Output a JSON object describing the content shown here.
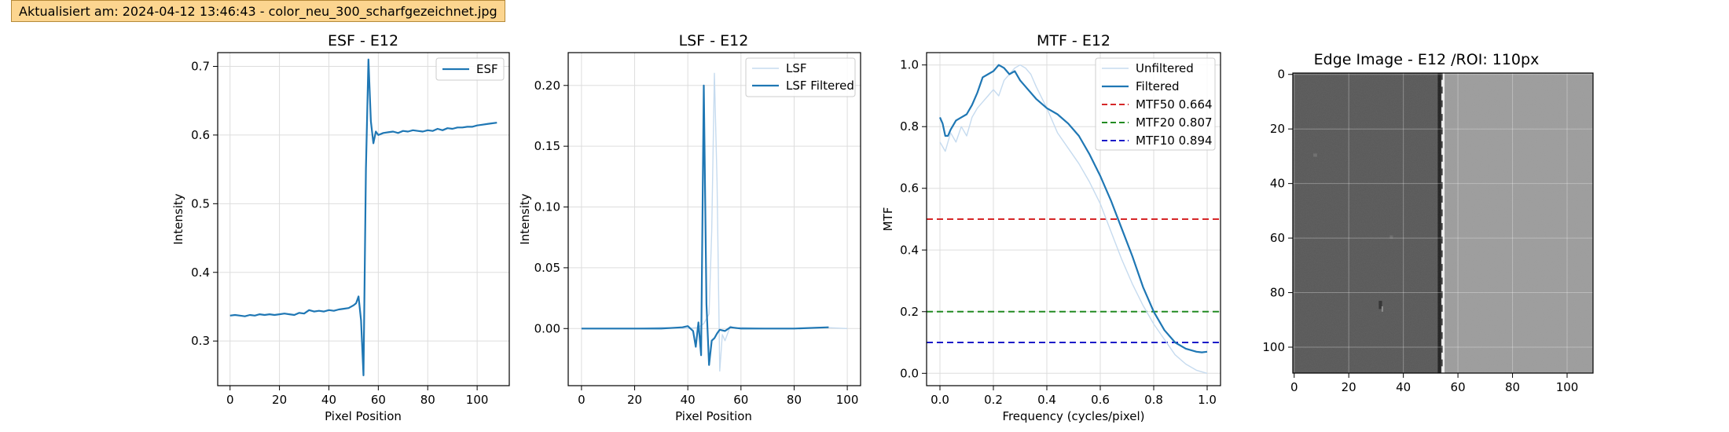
{
  "banner": {
    "text": "Aktualisiert am: 2024-04-12 13:46:43 - color_neu_300_scharfgezeichnet.jpg"
  },
  "colors": {
    "blue": "#1f77b4",
    "light_blue": "#c6dbef",
    "red": "#d62728",
    "green": "#228b22",
    "navy": "#1a1ac8"
  },
  "chart_data": [
    {
      "type": "line",
      "title": "ESF - E12",
      "xlabel": "Pixel Position",
      "ylabel": "Intensity",
      "xlim": [
        -5,
        113
      ],
      "ylim": [
        0.235,
        0.72
      ],
      "xticks": [
        "0",
        "20",
        "40",
        "60",
        "80",
        "100"
      ],
      "yticks": [
        "0.3",
        "0.4",
        "0.5",
        "0.6",
        "0.7"
      ],
      "grid": true,
      "legend": "top-right",
      "series": [
        {
          "name": "ESF",
          "x": [
            0,
            2,
            4,
            6,
            8,
            10,
            12,
            14,
            16,
            18,
            20,
            22,
            24,
            26,
            28,
            30,
            32,
            34,
            36,
            38,
            40,
            42,
            44,
            46,
            48,
            50,
            51,
            52,
            53,
            54,
            55,
            56,
            57,
            58,
            59,
            60,
            62,
            64,
            66,
            68,
            70,
            72,
            74,
            76,
            78,
            80,
            82,
            84,
            86,
            88,
            90,
            92,
            94,
            96,
            98,
            100,
            102,
            104,
            106,
            108
          ],
          "y": [
            0.337,
            0.338,
            0.337,
            0.336,
            0.338,
            0.337,
            0.339,
            0.338,
            0.339,
            0.338,
            0.339,
            0.34,
            0.339,
            0.338,
            0.341,
            0.34,
            0.345,
            0.343,
            0.344,
            0.343,
            0.345,
            0.344,
            0.346,
            0.347,
            0.348,
            0.352,
            0.355,
            0.365,
            0.33,
            0.25,
            0.55,
            0.71,
            0.62,
            0.588,
            0.605,
            0.6,
            0.603,
            0.604,
            0.605,
            0.603,
            0.606,
            0.605,
            0.607,
            0.606,
            0.605,
            0.607,
            0.606,
            0.609,
            0.607,
            0.61,
            0.609,
            0.611,
            0.611,
            0.612,
            0.612,
            0.614,
            0.615,
            0.616,
            0.617,
            0.618
          ]
        }
      ]
    },
    {
      "type": "line",
      "title": "LSF - E12",
      "xlabel": "Pixel Position",
      "ylabel": "Intensity",
      "xlim": [
        -5,
        105
      ],
      "ylim": [
        -0.047,
        0.227
      ],
      "xticks": [
        "0",
        "20",
        "40",
        "60",
        "80",
        "100"
      ],
      "yticks": [
        "0.00",
        "0.05",
        "0.10",
        "0.15",
        "0.20"
      ],
      "grid": true,
      "legend": "top-right",
      "series": [
        {
          "name": "LSF",
          "x": [
            0,
            10,
            20,
            30,
            40,
            44,
            46,
            48,
            49,
            50,
            51,
            52,
            53,
            54,
            56,
            58,
            60,
            70,
            80,
            90,
            100
          ],
          "y": [
            0.0,
            0.0,
            0.0,
            0.001,
            0.0,
            0.001,
            0.004,
            0.012,
            0.08,
            0.21,
            0.12,
            -0.035,
            -0.005,
            -0.01,
            0.002,
            0.0,
            0.001,
            0.0,
            0.0,
            0.001,
            0.0
          ]
        },
        {
          "name": "LSF Filtered",
          "x": [
            0,
            10,
            20,
            30,
            38,
            40,
            42,
            43,
            44,
            45,
            46,
            47,
            48,
            49,
            50,
            51,
            52,
            54,
            56,
            60,
            70,
            80,
            93
          ],
          "y": [
            0.0,
            0.0,
            0.0,
            0.0,
            0.001,
            0.002,
            -0.002,
            -0.015,
            0.005,
            -0.022,
            0.2,
            0.02,
            -0.03,
            -0.01,
            -0.008,
            -0.004,
            -0.001,
            -0.002,
            0.001,
            0.0,
            0.0,
            0.0,
            0.001
          ]
        }
      ]
    },
    {
      "type": "line",
      "title": "MTF - E12",
      "xlabel": "Frequency (cycles/pixel)",
      "ylabel": "MTF",
      "xlim": [
        -0.05,
        1.05
      ],
      "ylim": [
        -0.04,
        1.04
      ],
      "xticks": [
        "0.0",
        "0.2",
        "0.4",
        "0.6",
        "0.8",
        "1.0"
      ],
      "yticks": [
        "0.0",
        "0.2",
        "0.4",
        "0.6",
        "0.8",
        "1.0"
      ],
      "grid": true,
      "legend": "top-right",
      "series": [
        {
          "name": "Unfiltered",
          "x": [
            0.0,
            0.02,
            0.04,
            0.06,
            0.08,
            0.1,
            0.12,
            0.14,
            0.16,
            0.18,
            0.2,
            0.22,
            0.24,
            0.26,
            0.28,
            0.3,
            0.32,
            0.34,
            0.36,
            0.4,
            0.44,
            0.48,
            0.52,
            0.56,
            0.6,
            0.64,
            0.68,
            0.72,
            0.76,
            0.8,
            0.84,
            0.88,
            0.92,
            0.96,
            1.0
          ],
          "y": [
            0.75,
            0.72,
            0.78,
            0.75,
            0.8,
            0.77,
            0.83,
            0.86,
            0.88,
            0.9,
            0.92,
            0.9,
            0.95,
            0.97,
            0.99,
            1.0,
            0.99,
            0.97,
            0.93,
            0.86,
            0.78,
            0.73,
            0.68,
            0.62,
            0.55,
            0.46,
            0.37,
            0.29,
            0.22,
            0.16,
            0.11,
            0.06,
            0.03,
            0.01,
            0.0
          ]
        },
        {
          "name": "Filtered",
          "x": [
            0.0,
            0.01,
            0.02,
            0.03,
            0.04,
            0.06,
            0.08,
            0.1,
            0.12,
            0.14,
            0.16,
            0.18,
            0.2,
            0.22,
            0.24,
            0.26,
            0.28,
            0.3,
            0.32,
            0.36,
            0.4,
            0.44,
            0.48,
            0.52,
            0.56,
            0.6,
            0.64,
            0.68,
            0.72,
            0.76,
            0.8,
            0.84,
            0.88,
            0.92,
            0.96,
            0.98,
            1.0
          ],
          "y": [
            0.83,
            0.81,
            0.77,
            0.77,
            0.79,
            0.82,
            0.83,
            0.84,
            0.87,
            0.91,
            0.96,
            0.97,
            0.98,
            1.0,
            0.99,
            0.97,
            0.98,
            0.95,
            0.93,
            0.89,
            0.86,
            0.84,
            0.81,
            0.77,
            0.71,
            0.64,
            0.56,
            0.47,
            0.38,
            0.28,
            0.2,
            0.14,
            0.1,
            0.08,
            0.07,
            0.068,
            0.07
          ]
        },
        {
          "name": "MTF50 0.664",
          "kind": "hline",
          "y": 0.5,
          "style": "dashed",
          "color": "#d62728"
        },
        {
          "name": "MTF20 0.807",
          "kind": "hline",
          "y": 0.2,
          "style": "dashed",
          "color": "#228b22"
        },
        {
          "name": "MTF10 0.894",
          "kind": "hline",
          "y": 0.1,
          "style": "dashed",
          "color": "#1a1ac8"
        }
      ]
    },
    {
      "type": "heatmap",
      "title": "Edge Image - E12 /ROI: 110px",
      "xlim": [
        -0.5,
        109.5
      ],
      "ylim": [
        109.5,
        -0.5
      ],
      "xticks": [
        "0",
        "20",
        "40",
        "60",
        "80",
        "100"
      ],
      "yticks": [
        "0",
        "20",
        "40",
        "60",
        "80",
        "100"
      ],
      "grid": true,
      "edge_position": 54,
      "dark_level": 0.34,
      "bright_level": 0.61
    }
  ]
}
